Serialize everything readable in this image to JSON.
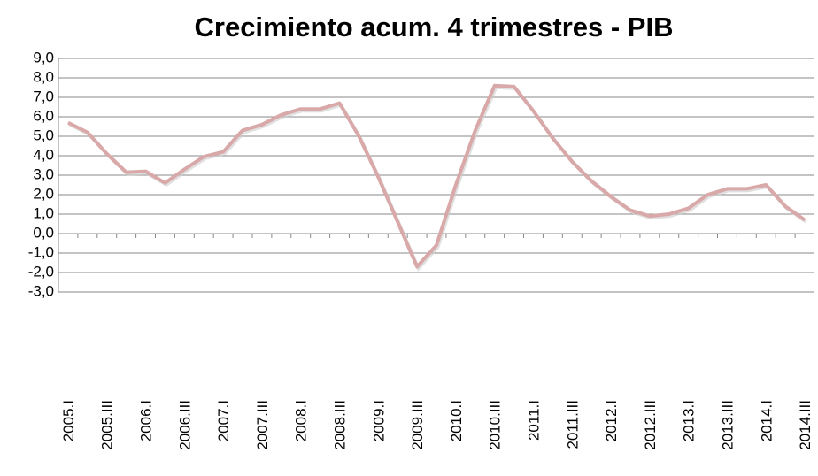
{
  "chart_data": {
    "type": "line",
    "title": "Crecimiento acum. 4 trimestres - PIB",
    "categories": [
      "2005.I",
      null,
      "2005.III",
      null,
      "2006.I",
      null,
      "2006.III",
      null,
      "2007.I",
      null,
      "2007.III",
      null,
      "2008.I",
      null,
      "2008.III",
      null,
      "2009.I",
      null,
      "2009.III",
      null,
      "2010.I",
      null,
      "2010.III",
      null,
      "2011.I",
      null,
      "2011.III",
      null,
      "2012.I",
      null,
      "2012.III",
      null,
      "2013.I",
      null,
      "2013.III",
      null,
      "2014.I",
      null,
      "2014.III"
    ],
    "series": [
      {
        "color": "#d9a8a8",
        "values": [
          5.7,
          5.2,
          4.1,
          3.15,
          3.2,
          2.6,
          3.3,
          3.95,
          4.2,
          5.3,
          5.6,
          6.1,
          6.4,
          6.4,
          6.7,
          5.0,
          2.9,
          0.6,
          -1.7,
          -0.6,
          2.5,
          5.3,
          7.6,
          7.55,
          6.3,
          4.9,
          3.7,
          2.7,
          1.9,
          1.2,
          0.9,
          1.0,
          1.3,
          2.0,
          2.3,
          2.3,
          2.5,
          1.4,
          0.7
        ]
      }
    ],
    "ylim": [
      -3,
      9
    ],
    "yticks": [
      {
        "value": -3,
        "label": "-3,0"
      },
      {
        "value": -2,
        "label": "-2,0"
      },
      {
        "value": -1,
        "label": "-1,0"
      },
      {
        "value": 0,
        "label": "0,0"
      },
      {
        "value": 1,
        "label": "1,0"
      },
      {
        "value": 2,
        "label": "2,0"
      },
      {
        "value": 3,
        "label": "3,0"
      },
      {
        "value": 4,
        "label": "4,0"
      },
      {
        "value": 5,
        "label": "5,0"
      },
      {
        "value": 6,
        "label": "6,0"
      },
      {
        "value": 7,
        "label": "7,0"
      },
      {
        "value": 8,
        "label": "8,0"
      },
      {
        "value": 9,
        "label": "9,0"
      }
    ],
    "grid": true
  }
}
